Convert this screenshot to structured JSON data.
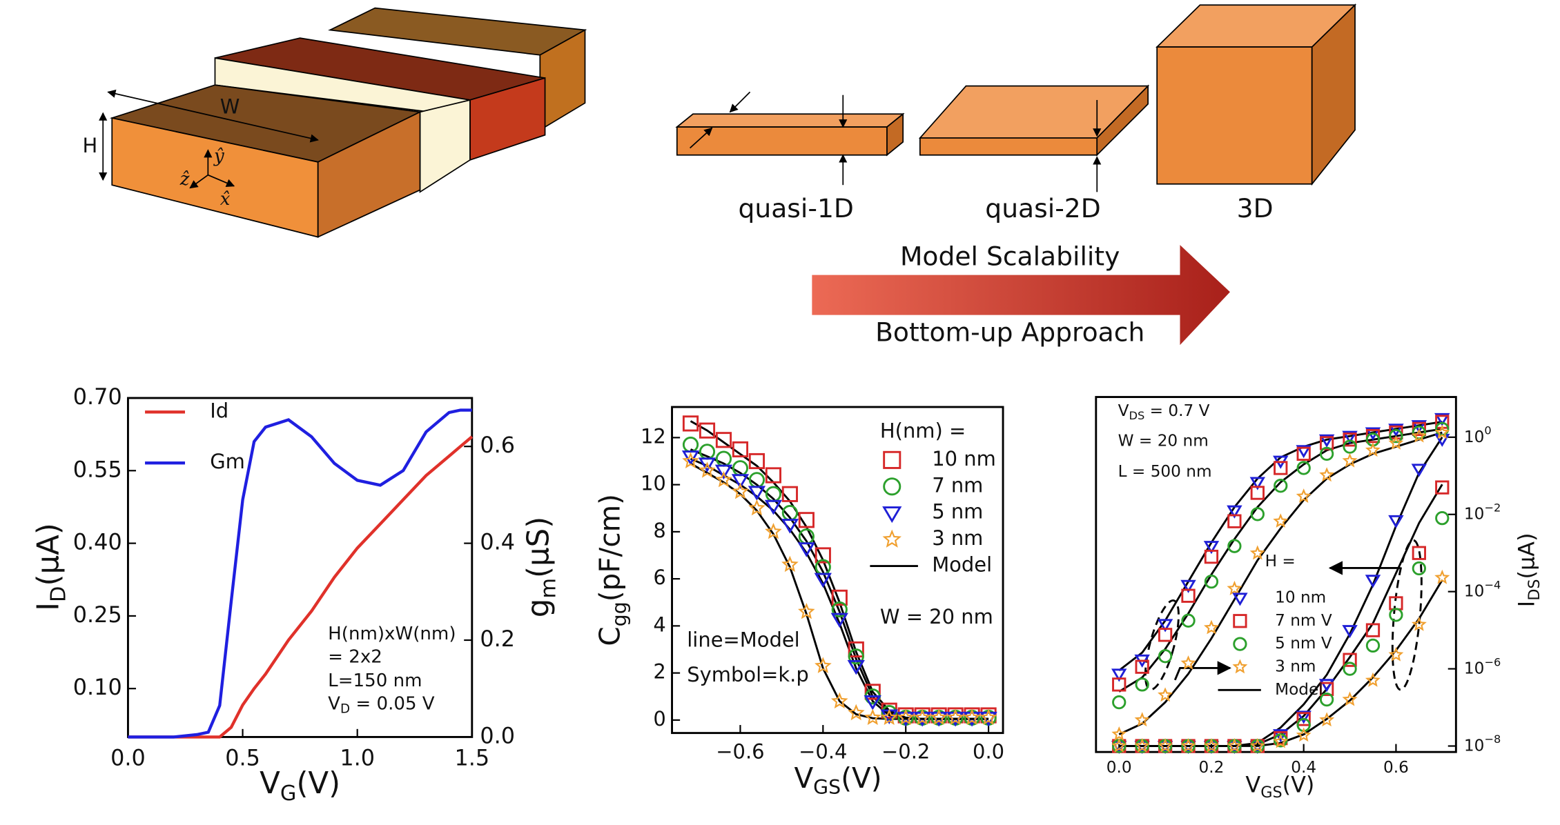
{
  "diagram": {
    "w_label": "W",
    "h_label": "H",
    "axis_z": "ẑ",
    "axis_y": "ŷ",
    "axis_x": "x̂",
    "shapes": [
      "quasi-1D",
      "quasi-2D",
      "3D"
    ],
    "arrow_top": "Model Scalability",
    "arrow_bottom": "Bottom-up Approach"
  },
  "chart_data": [
    {
      "type": "line",
      "xlabel": [
        "V",
        "G",
        "(V)"
      ],
      "ylabel": [
        "I",
        "D",
        "(μA)"
      ],
      "y2label": [
        "g",
        "m",
        "(μS)"
      ],
      "x": [
        0,
        0.1,
        0.2,
        0.3,
        0.35,
        0.4,
        0.45,
        0.5,
        0.55,
        0.6,
        0.7,
        0.8,
        0.9,
        1.0,
        1.1,
        1.2,
        1.3,
        1.4,
        1.45,
        1.5
      ],
      "xlim": [
        0,
        1.5
      ],
      "xticks": [
        {
          "value": 0,
          "label": "0.0"
        },
        0.5,
        {
          "value": 1,
          "label": "1.0"
        },
        1.5
      ],
      "ylim": [
        0,
        0.7
      ],
      "yticks": [
        {
          "value": 0.1,
          "label": "0.10"
        },
        0.25,
        {
          "value": 0.4,
          "label": "0.40"
        },
        0.55,
        {
          "value": 0.7,
          "label": "0.70"
        }
      ],
      "y2lim": [
        0,
        0.7
      ],
      "y2ticks": [
        {
          "value": 0,
          "label": "0.0"
        },
        0.2,
        0.4,
        0.6
      ],
      "series": [
        {
          "name": "Id",
          "color": "#e0312a",
          "values": [
            0,
            0,
            0,
            0,
            0,
            0,
            0.02,
            0.066,
            0.1,
            0.13,
            0.2,
            0.26,
            0.33,
            0.39,
            0.44,
            0.49,
            0.54,
            0.58,
            0.6,
            0.62
          ]
        },
        {
          "name": "Gm",
          "color": "#1f1fe0",
          "axis": "y2",
          "values": [
            0,
            0,
            0,
            0.005,
            0.01,
            0.065,
            0.28,
            0.49,
            0.61,
            0.64,
            0.655,
            0.62,
            0.565,
            0.53,
            0.52,
            0.55,
            0.63,
            0.67,
            0.675,
            0.675
          ]
        }
      ],
      "annotations": [
        [
          "H(nm)xW(nm)"
        ],
        [
          "= 2x2"
        ],
        [
          "L=150 nm"
        ],
        [
          "V",
          "D",
          " = 0.05 V"
        ]
      ]
    },
    {
      "type": "scatter",
      "xlabel": [
        "V",
        "GS",
        "(V)"
      ],
      "ylabel": [
        "C",
        "gg",
        "(pF/cm)"
      ],
      "x": [
        -0.72,
        -0.68,
        -0.64,
        -0.6,
        -0.56,
        -0.52,
        -0.48,
        -0.44,
        -0.4,
        -0.36,
        -0.32,
        -0.28,
        -0.24,
        -0.2,
        -0.16,
        -0.12,
        -0.08,
        -0.04,
        0
      ],
      "xlim": [
        -0.765,
        0.035
      ],
      "xticks": [
        {
          "value": -0.6,
          "label": "−0.6"
        },
        {
          "value": -0.4,
          "label": "−0.4"
        },
        {
          "value": -0.2,
          "label": "−0.2"
        },
        {
          "value": 0,
          "label": "0.0"
        }
      ],
      "ylim": [
        -0.55,
        13.3
      ],
      "yticks": [
        0,
        2,
        4,
        6,
        8,
        10,
        12
      ],
      "legend_title": "H(nm) =",
      "series": [
        {
          "name": "10 nm",
          "color": "#d62728",
          "marker": "square",
          "values": [
            12.6,
            12.3,
            11.9,
            11.5,
            11.0,
            10.4,
            9.6,
            8.5,
            7.0,
            5.2,
            3.0,
            1.2,
            0.4,
            0.2,
            0.2,
            0.2,
            0.2,
            0.2,
            0.2
          ]
        },
        {
          "name": "7 nm",
          "color": "#2ca02c",
          "marker": "circle",
          "values": [
            11.7,
            11.4,
            11.1,
            10.7,
            10.2,
            9.6,
            8.8,
            7.8,
            6.5,
            4.7,
            2.7,
            1.0,
            0.3,
            0.1,
            0.1,
            0.1,
            0.1,
            0.1,
            0.1
          ]
        },
        {
          "name": "5 nm",
          "color": "#1f1fd6",
          "marker": "triangle",
          "values": [
            11.2,
            10.9,
            10.6,
            10.2,
            9.7,
            9.1,
            8.3,
            7.3,
            6.0,
            4.3,
            2.3,
            0.8,
            0.2,
            0.1,
            0.1,
            0.1,
            0.1,
            0.1,
            0.1
          ]
        },
        {
          "name": "3 nm",
          "color": "#f0a030",
          "marker": "star",
          "values": [
            11.0,
            10.6,
            10.2,
            9.7,
            9.0,
            8.0,
            6.6,
            4.6,
            2.3,
            0.8,
            0.3,
            0.1,
            0.1,
            0.1,
            0.1,
            0.1,
            0.1,
            0.1,
            0.1
          ]
        }
      ],
      "model": {
        "name": "Model",
        "color": "#000000",
        "lines": [
          {
            "values": [
              12.7,
              12.3,
              11.8,
              11.3,
              10.8,
              10.1,
              9.3,
              8.2,
              6.8,
              5.0,
              2.9,
              1.2,
              0.4,
              0.1,
              0.05,
              0.05,
              0.05,
              0.05,
              0.05
            ]
          },
          {
            "values": [
              11.5,
              11.2,
              10.9,
              10.5,
              10.0,
              9.4,
              8.6,
              7.6,
              6.3,
              4.6,
              2.6,
              1.0,
              0.3,
              0.1,
              0.05,
              0.05,
              0.05,
              0.05,
              0.05
            ]
          },
          {
            "values": [
              11.1,
              10.8,
              10.4,
              10.0,
              9.5,
              8.9,
              8.1,
              7.1,
              5.8,
              4.1,
              2.2,
              0.8,
              0.2,
              0.05,
              0.05,
              0.05,
              0.05,
              0.05,
              0.05
            ]
          },
          {
            "values": [
              10.9,
              10.5,
              10.1,
              9.6,
              8.9,
              7.9,
              6.5,
              4.5,
              2.2,
              0.8,
              0.25,
              0.08,
              0.05,
              0.05,
              0.05,
              0.05,
              0.05,
              0.05,
              0.05
            ]
          }
        ]
      },
      "annotations": [
        [
          "W = 20 nm"
        ],
        [
          "line=Model"
        ],
        [
          "Symbol=k.p"
        ]
      ]
    },
    {
      "type": "scatter",
      "xlabel": [
        "V",
        "GS",
        "(V)"
      ],
      "y2label": [
        "I",
        "DS",
        "(μA)"
      ],
      "x": [
        0,
        0.05,
        0.1,
        0.15,
        0.2,
        0.25,
        0.3,
        0.35,
        0.4,
        0.45,
        0.5,
        0.55,
        0.6,
        0.65,
        0.7
      ],
      "xlim": [
        -0.05,
        0.73
      ],
      "xticks": [
        {
          "value": 0,
          "label": "0.0"
        },
        0.2,
        0.4,
        0.6
      ],
      "ylim": [
        0,
        1
      ],
      "y2lim": [
        7e-09,
        11
      ],
      "y2scale": "log",
      "y2ticks": [
        {
          "value": 1,
          "label": [
            "10",
            "0"
          ]
        },
        {
          "value": 0.01,
          "label": [
            "10",
            "−2"
          ]
        },
        {
          "value": 0.0001,
          "label": [
            "10",
            "−4"
          ]
        },
        {
          "value": 1e-06,
          "label": [
            "10",
            "−6"
          ]
        },
        {
          "value": 1e-08,
          "label": [
            "10",
            "−8"
          ]
        }
      ],
      "legend_title": "H =",
      "series": [
        {
          "name": "10 nm",
          "color": "#1f1fd6",
          "marker": "triangle",
          "values": [
            0.22,
            0.26,
            0.36,
            0.47,
            0.58,
            0.68,
            0.76,
            0.82,
            0.85,
            0.88,
            0.89,
            0.9,
            0.91,
            0.92,
            0.94
          ],
          "values_y2": [
            1e-08,
            1e-08,
            1e-08,
            1e-08,
            1e-08,
            1e-08,
            1e-08,
            2e-08,
            6e-08,
            4e-07,
            1e-05,
            0.0002,
            0.007,
            0.15,
            0.9
          ]
        },
        {
          "name": "7 nm V",
          "color": "#d62728",
          "marker": "square",
          "values": [
            0.19,
            0.24,
            0.33,
            0.44,
            0.55,
            0.65,
            0.73,
            0.8,
            0.84,
            0.87,
            0.88,
            0.89,
            0.9,
            0.91,
            0.93
          ],
          "values_y2": [
            1e-08,
            1e-08,
            1e-08,
            1e-08,
            1e-08,
            1e-08,
            1e-08,
            1.6e-08,
            5e-08,
            3e-07,
            1.7e-06,
            1e-05,
            5e-05,
            0.001,
            0.05
          ]
        },
        {
          "name": "5 nm V",
          "color": "#2ca02c",
          "marker": "circle",
          "values": [
            0.14,
            0.19,
            0.27,
            0.37,
            0.48,
            0.58,
            0.67,
            0.75,
            0.8,
            0.84,
            0.86,
            0.88,
            0.89,
            0.9,
            0.91
          ],
          "values_y2": [
            1e-08,
            1e-08,
            1e-08,
            1e-08,
            1e-08,
            1e-08,
            1e-08,
            1.4e-08,
            3.5e-08,
            1.6e-07,
            1e-06,
            4e-06,
            2.5e-05,
            0.0004,
            0.008
          ]
        },
        {
          "name": "3 nm",
          "color": "#f0a030",
          "marker": "star",
          "values": [
            0.05,
            0.09,
            0.16,
            0.25,
            0.35,
            0.46,
            0.56,
            0.65,
            0.72,
            0.78,
            0.82,
            0.85,
            0.87,
            0.89,
            0.9
          ],
          "values_y2": [
            1e-08,
            1e-08,
            1e-08,
            1e-08,
            1e-08,
            1e-08,
            1e-08,
            1.3e-08,
            1.9e-08,
            4.7e-08,
            1.6e-07,
            5e-07,
            2.3e-06,
            1.4e-05,
            0.00023
          ]
        }
      ],
      "model": {
        "name": "Model",
        "color": "#000000",
        "lines": [
          {
            "values": [
              0.23,
              0.28,
              0.37,
              0.48,
              0.59,
              0.69,
              0.77,
              0.83,
              0.86,
              0.88,
              0.89,
              0.9,
              0.91,
              0.92,
              0.93
            ]
          },
          {
            "values": [
              0.17,
              0.21,
              0.29,
              0.39,
              0.5,
              0.6,
              0.69,
              0.76,
              0.81,
              0.85,
              0.87,
              0.88,
              0.89,
              0.9,
              0.91
            ]
          },
          {
            "values": [
              0.05,
              0.08,
              0.14,
              0.22,
              0.32,
              0.43,
              0.54,
              0.63,
              0.71,
              0.77,
              0.81,
              0.84,
              0.86,
              0.88,
              0.9
            ]
          },
          {
            "axis": "y2",
            "values": [
              1e-08,
              1e-08,
              1e-08,
              1e-08,
              1e-08,
              1e-08,
              1.2e-08,
              3e-08,
              1.2e-07,
              7e-07,
              8e-06,
              0.00015,
              0.005,
              0.12,
              1.0
            ]
          },
          {
            "axis": "y2",
            "values": [
              1e-08,
              1e-08,
              1e-08,
              1e-08,
              1e-08,
              1e-08,
              1.1e-08,
              2e-08,
              6e-08,
              3e-07,
              2e-06,
              1.5e-05,
              0.0003,
              0.006,
              0.06
            ]
          },
          {
            "axis": "y2",
            "values": [
              1e-08,
              1e-08,
              1e-08,
              1e-08,
              1e-08,
              1e-08,
              1e-08,
              1.2e-08,
              2e-08,
              5e-08,
              1.5e-07,
              6e-07,
              3e-06,
              2e-05,
              0.0002
            ]
          }
        ]
      },
      "annotations": [
        [
          "V",
          "DS",
          " = 0.7 V"
        ],
        [
          "W = 20 nm"
        ],
        [
          "L = 500 nm"
        ]
      ]
    }
  ]
}
